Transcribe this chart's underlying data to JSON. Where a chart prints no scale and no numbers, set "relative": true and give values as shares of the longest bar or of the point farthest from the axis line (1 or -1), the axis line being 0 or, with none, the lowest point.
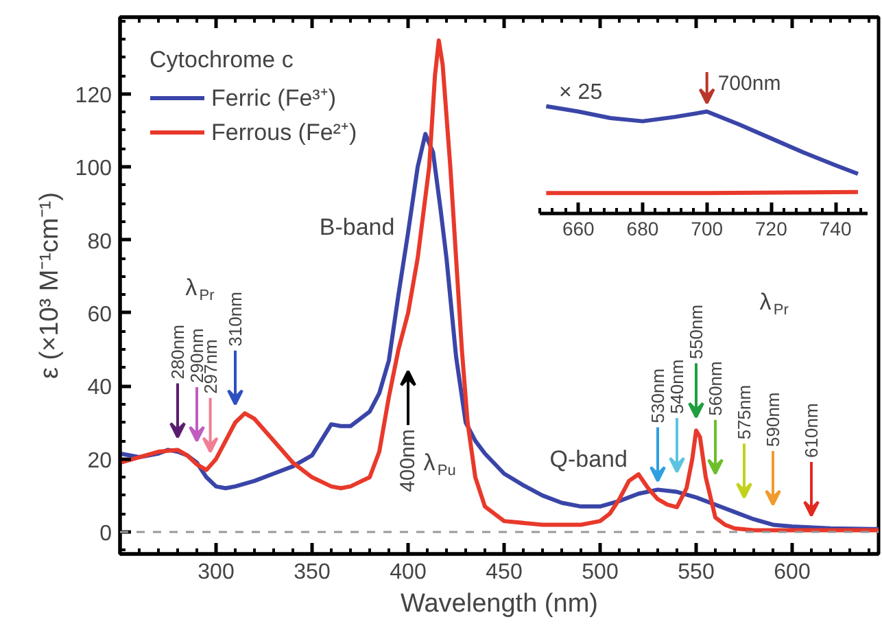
{
  "chart_data": [
    {
      "type": "line",
      "xlabel": "Wavelength (nm)",
      "ylabel": "ε (×10³ M⁻¹cm⁻¹)",
      "legend_title": "Cytochrome c",
      "legend": "top left",
      "grid": false,
      "xlim": [
        250,
        645
      ],
      "ylim": [
        -6,
        141
      ],
      "xticks": [
        300,
        350,
        400,
        450,
        500,
        550,
        600
      ],
      "yticks": [
        0,
        20,
        40,
        60,
        80,
        100,
        120
      ],
      "series": [
        {
          "name": "Ferric (Fe³⁺)",
          "color": "#3a45a8",
          "x": [
            250,
            260,
            270,
            275,
            280,
            285,
            290,
            295,
            300,
            305,
            310,
            320,
            330,
            340,
            350,
            360,
            365,
            370,
            380,
            385,
            390,
            395,
            400,
            405,
            409,
            413,
            417,
            420,
            425,
            430,
            435,
            440,
            450,
            460,
            470,
            480,
            490,
            500,
            510,
            520,
            530,
            540,
            550,
            560,
            570,
            580,
            590,
            600,
            620,
            645
          ],
          "values": [
            21.5,
            20.5,
            21.5,
            22.5,
            22,
            21,
            19,
            15,
            12.5,
            12,
            12.5,
            14,
            16,
            18,
            21,
            29.5,
            29,
            29,
            33,
            38,
            47,
            65,
            82,
            100,
            109,
            104,
            88,
            75,
            48,
            30,
            25,
            21.5,
            16,
            12.8,
            10,
            8,
            7,
            7,
            8.5,
            10.5,
            11.6,
            11,
            9.5,
            7.5,
            5.5,
            3.5,
            2,
            1.5,
            1,
            0.8
          ]
        },
        {
          "name": "Ferrous (Fe²⁺)",
          "color": "#e8392b",
          "x": [
            250,
            260,
            270,
            280,
            285,
            290,
            295,
            300,
            305,
            310,
            315,
            320,
            330,
            340,
            350,
            360,
            365,
            370,
            380,
            385,
            390,
            395,
            400,
            405,
            411,
            414,
            416,
            418,
            422,
            425,
            428,
            431,
            435,
            440,
            450,
            470,
            490,
            500,
            505,
            510,
            515,
            520,
            525,
            530,
            535,
            540,
            545,
            548,
            550,
            552,
            555,
            560,
            565,
            570,
            580,
            600,
            645
          ],
          "values": [
            19,
            20.5,
            22,
            22.5,
            21,
            18.5,
            17,
            20,
            25,
            30,
            32.5,
            31,
            25,
            19,
            15,
            12.5,
            12,
            12.5,
            15,
            22,
            37,
            50,
            60,
            75,
            100,
            125,
            134.6,
            128,
            100,
            75,
            50,
            30,
            15,
            7,
            3,
            2,
            2,
            3,
            5,
            9,
            14,
            15.8,
            12,
            9,
            7.5,
            6.8,
            12,
            20,
            27.8,
            26,
            15,
            4,
            2,
            1,
            0.5,
            0.5,
            0.5
          ]
        }
      ],
      "ref_lines": [
        {
          "axis": "y",
          "value": 0,
          "color": "#999999",
          "line_style": "dashed"
        }
      ],
      "annotations": [
        "B-band",
        "Q-band",
        "λ$_{Pr}$",
        "λ$_{Pu}$",
        "λ$_{Pr}$",
        "280nm",
        "290nm",
        "297nm",
        "310nm",
        "400nm",
        "530nm",
        "540nm",
        "550nm",
        "560nm",
        "575nm",
        "590nm",
        "610nm"
      ]
    },
    {
      "type": "line",
      "relative": true,
      "tick_labels": "x",
      "grid": false,
      "xlim": [
        648,
        750
      ],
      "xticks": [
        660,
        680,
        700,
        720,
        740
      ],
      "series": [
        {
          "color": "#3a45a8",
          "x": [
            650,
            660,
            670,
            680,
            690,
            700,
            710,
            720,
            730,
            740,
            747
          ],
          "values": [
            1,
            0.95,
            0.89,
            0.86,
            0.9,
            0.95,
            0.83,
            0.7,
            0.57,
            0.45,
            0.37
          ]
        },
        {
          "color": "#e8392b",
          "x": [
            650,
            700,
            747
          ],
          "values": [
            0.19,
            0.19,
            0.2
          ]
        }
      ],
      "annotations": [
        "× 25",
        {
          "text": "700nm",
          "x": 700,
          "y": 1.03
        }
      ]
    }
  ]
}
